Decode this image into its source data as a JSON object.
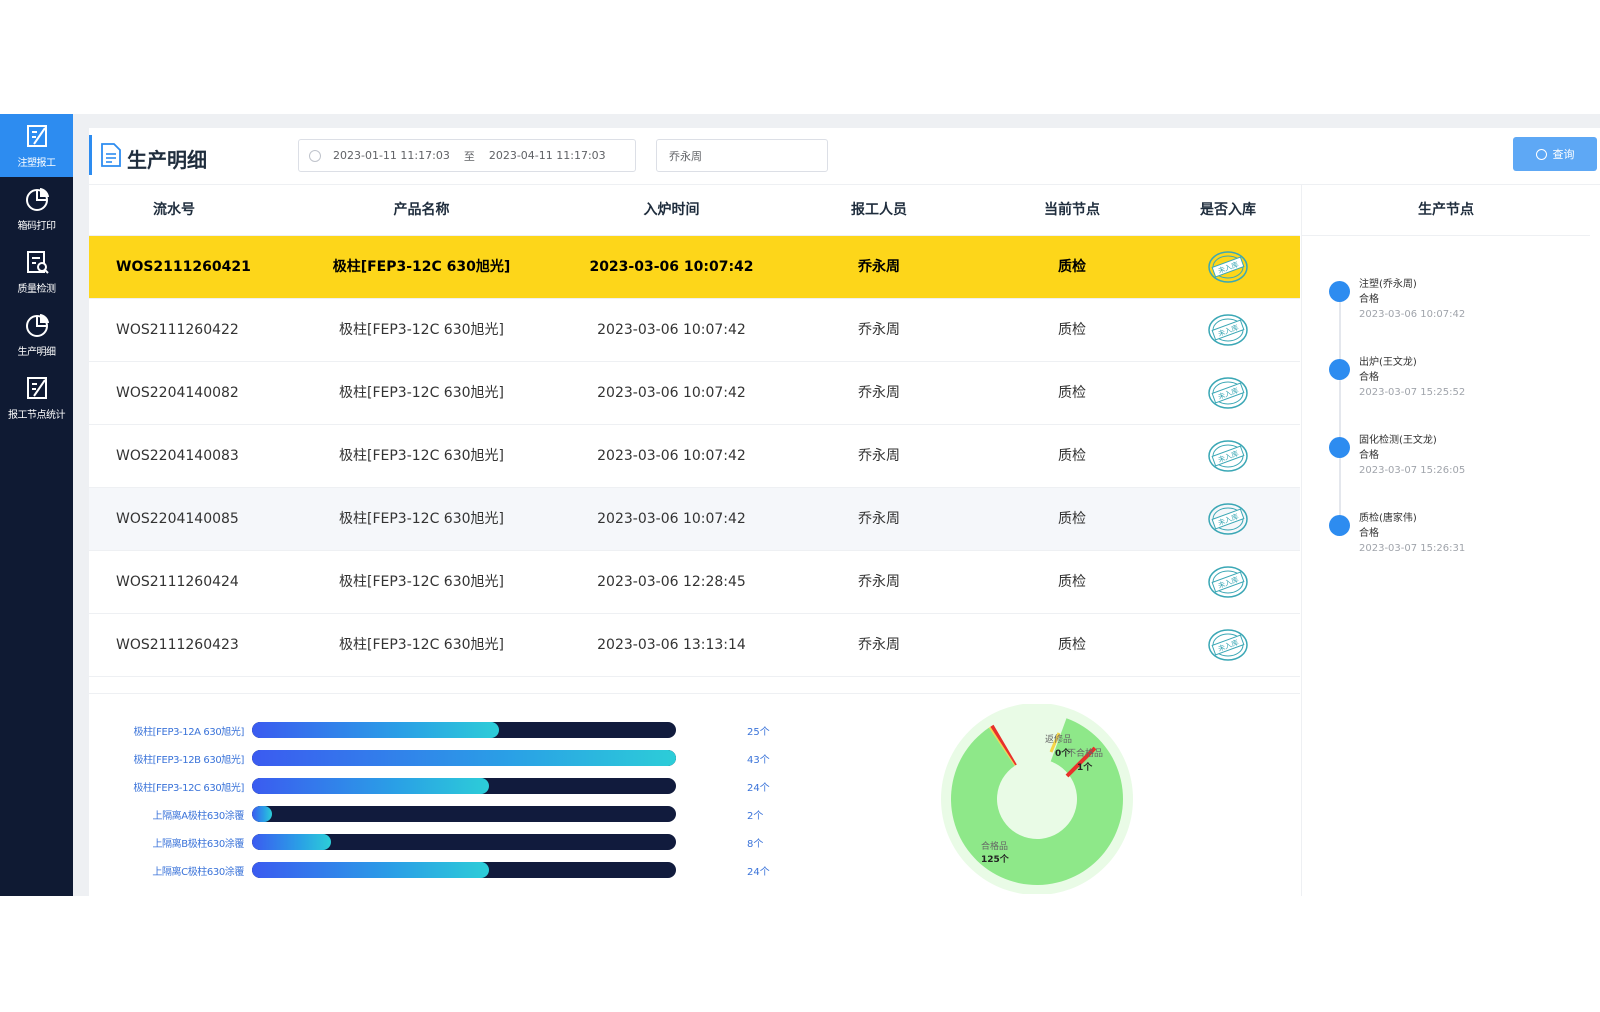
{
  "sidebar": {
    "items": [
      {
        "label": "注塑报工",
        "icon": "form-edit-icon",
        "active": true
      },
      {
        "label": "箱码打印",
        "icon": "pie-chart-icon",
        "active": false
      },
      {
        "label": "质量检测",
        "icon": "clipboard-search-icon",
        "active": false
      },
      {
        "label": "生产明细",
        "icon": "pie-chart-icon",
        "active": false
      },
      {
        "label": "报工节点统计",
        "icon": "form-edit-icon",
        "active": false
      }
    ]
  },
  "header": {
    "title": "生产明细",
    "date_start": "2023-01-11 11:17:03",
    "date_sep": "至",
    "date_end": "2023-04-11 11:17:03",
    "name_filter": "乔永周",
    "query_label": "查询"
  },
  "table": {
    "columns": [
      "流水号",
      "产品名称",
      "入炉时间",
      "报工人员",
      "当前节点",
      "是否入库"
    ],
    "rows": [
      {
        "serial": "WOS2111260421",
        "product": "极柱[FEP3-12C 630旭光]",
        "time": "2023-03-06 10:07:42",
        "worker": "乔永周",
        "node": "质检",
        "stock": "未入库"
      },
      {
        "serial": "WOS2111260422",
        "product": "极柱[FEP3-12C 630旭光]",
        "time": "2023-03-06 10:07:42",
        "worker": "乔永周",
        "node": "质检",
        "stock": "未入库"
      },
      {
        "serial": "WOS2204140082",
        "product": "极柱[FEP3-12C 630旭光]",
        "time": "2023-03-06 10:07:42",
        "worker": "乔永周",
        "node": "质检",
        "stock": "未入库"
      },
      {
        "serial": "WOS2204140083",
        "product": "极柱[FEP3-12C 630旭光]",
        "time": "2023-03-06 10:07:42",
        "worker": "乔永周",
        "node": "质检",
        "stock": "未入库"
      },
      {
        "serial": "WOS2204140085",
        "product": "极柱[FEP3-12C 630旭光]",
        "time": "2023-03-06 10:07:42",
        "worker": "乔永周",
        "node": "质检",
        "stock": "未入库"
      },
      {
        "serial": "WOS2111260424",
        "product": "极柱[FEP3-12C 630旭光]",
        "time": "2023-03-06 12:28:45",
        "worker": "乔永周",
        "node": "质检",
        "stock": "未入库"
      },
      {
        "serial": "WOS2111260423",
        "product": "极柱[FEP3-12C 630旭光]",
        "time": "2023-03-06 13:13:14",
        "worker": "乔永周",
        "node": "质检",
        "stock": "未入库"
      }
    ],
    "selected_row": 0,
    "colors": {
      "selected": "#fdd61a",
      "stamp": "#3aa7b5"
    }
  },
  "side_panel": {
    "title": "生产节点",
    "nodes": [
      {
        "title": "注塑(乔永周)",
        "status": "合格",
        "time": "2023-03-06 10:07:42"
      },
      {
        "title": "出炉(王文龙)",
        "status": "合格",
        "time": "2023-03-07 15:25:52"
      },
      {
        "title": "固化检测(王文龙)",
        "status": "合格",
        "time": "2023-03-07 15:26:05"
      },
      {
        "title": "质检(唐家伟)",
        "status": "合格",
        "time": "2023-03-07 15:26:31"
      }
    ]
  },
  "chart_data": [
    {
      "type": "bar",
      "orientation": "horizontal",
      "categories": [
        "极柱[FEP3-12A 630旭光]",
        "极柱[FEP3-12B 630旭光]",
        "极柱[FEP3-12C 630旭光]",
        "上隔离A极柱630涂覆",
        "上隔离B极柱630涂覆",
        "上隔离C极柱630涂覆"
      ],
      "values": [
        25,
        43,
        24,
        2,
        8,
        24
      ],
      "value_labels": [
        "25个",
        "43个",
        "24个",
        "2个",
        "8个",
        "24个"
      ],
      "xlim": [
        0,
        43
      ]
    },
    {
      "type": "pie",
      "style": "donut",
      "labels": [
        "合格品",
        "返修品",
        "不合格品"
      ],
      "values": [
        125,
        0,
        1
      ],
      "value_labels": [
        "125个",
        "0个",
        "1个"
      ],
      "colors": [
        "#8ee889",
        "#f5d547",
        "#e8312a"
      ]
    }
  ]
}
